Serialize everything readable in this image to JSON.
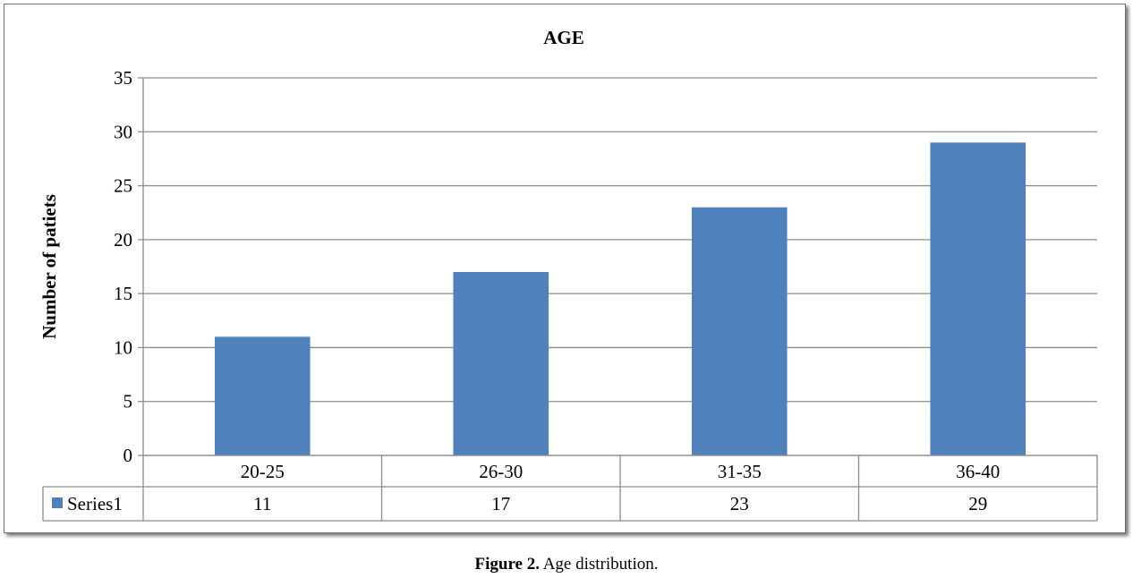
{
  "chart_data": {
    "type": "bar",
    "title": "AGE",
    "xlabel": "",
    "ylabel": "Number of patiets",
    "categories": [
      "20-25",
      "26-30",
      "31-35",
      "36-40"
    ],
    "series": [
      {
        "name": "Series1",
        "values": [
          11,
          17,
          23,
          29
        ],
        "color": "#4F81BD"
      }
    ],
    "ylim": [
      0,
      35
    ],
    "yticks": [
      0,
      5,
      10,
      15,
      20,
      25,
      30,
      35
    ],
    "grid": true,
    "legend": "data-table",
    "data_table": true
  },
  "caption": {
    "label": "Figure 2.",
    "text": " Age distribution."
  }
}
